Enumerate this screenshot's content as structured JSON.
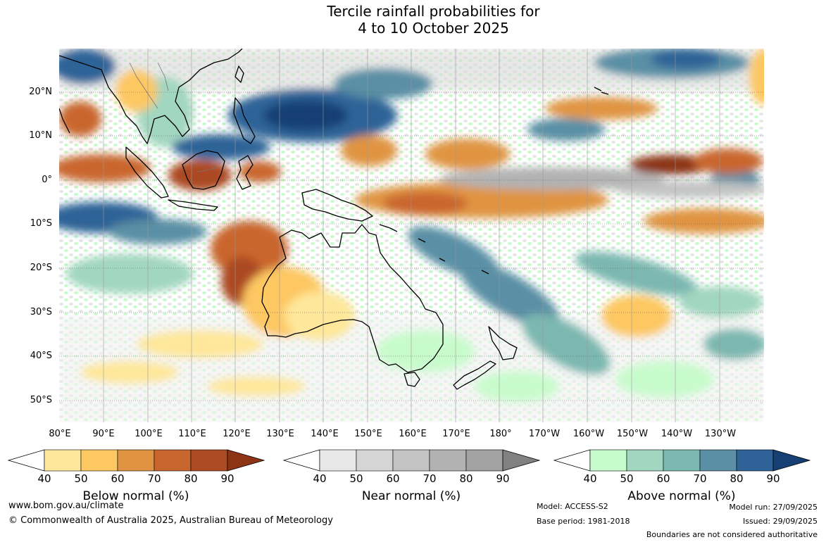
{
  "title": {
    "line1": "Tercile rainfall probabilities for",
    "line2": "4 to 10 October 2025"
  },
  "map": {
    "lat_labels": [
      "20°N",
      "10°N",
      "0°",
      "10°S",
      "20°S",
      "30°S",
      "40°S",
      "50°S"
    ],
    "lon_labels": [
      "80°E",
      "90°E",
      "100°E",
      "110°E",
      "120°E",
      "130°E",
      "140°E",
      "150°E",
      "160°E",
      "170°E",
      "180°",
      "170°W",
      "160°W",
      "150°W",
      "140°W",
      "130°W"
    ]
  },
  "colorbars": [
    {
      "title": "Below normal (%)",
      "ticks": [
        "40",
        "50",
        "60",
        "70",
        "80",
        "90"
      ],
      "colors": [
        "#ffffff",
        "#fee79a",
        "#fdc762",
        "#e09443",
        "#c9662f",
        "#ac4a23",
        "#8c3414"
      ]
    },
    {
      "title": "Near normal (%)",
      "ticks": [
        "40",
        "50",
        "60",
        "70",
        "80",
        "90"
      ],
      "colors": [
        "#ffffff",
        "#e7e7e7",
        "#d5d5d5",
        "#c3c3c3",
        "#b2b2b2",
        "#a2a2a2",
        "#818181"
      ]
    },
    {
      "title": "Above normal (%)",
      "ticks": [
        "40",
        "50",
        "60",
        "70",
        "80",
        "90"
      ],
      "colors": [
        "#ffffff",
        "#c8fbcc",
        "#a1d6c0",
        "#7cb8b0",
        "#5a8fa5",
        "#2f6398",
        "#163f74"
      ]
    }
  ],
  "footer": {
    "website": "www.bom.gov.au/climate",
    "copyright": "© Commonwealth of Australia 2025, Australian Bureau of Meteorology",
    "model": "Model: ACCESS-S2",
    "base_period": "Base period: 1981-2018",
    "model_run": "Model run: 27/09/2025",
    "issued": "Issued: 29/09/2025",
    "disclaimer": "Boundaries are not considered authoritative"
  }
}
